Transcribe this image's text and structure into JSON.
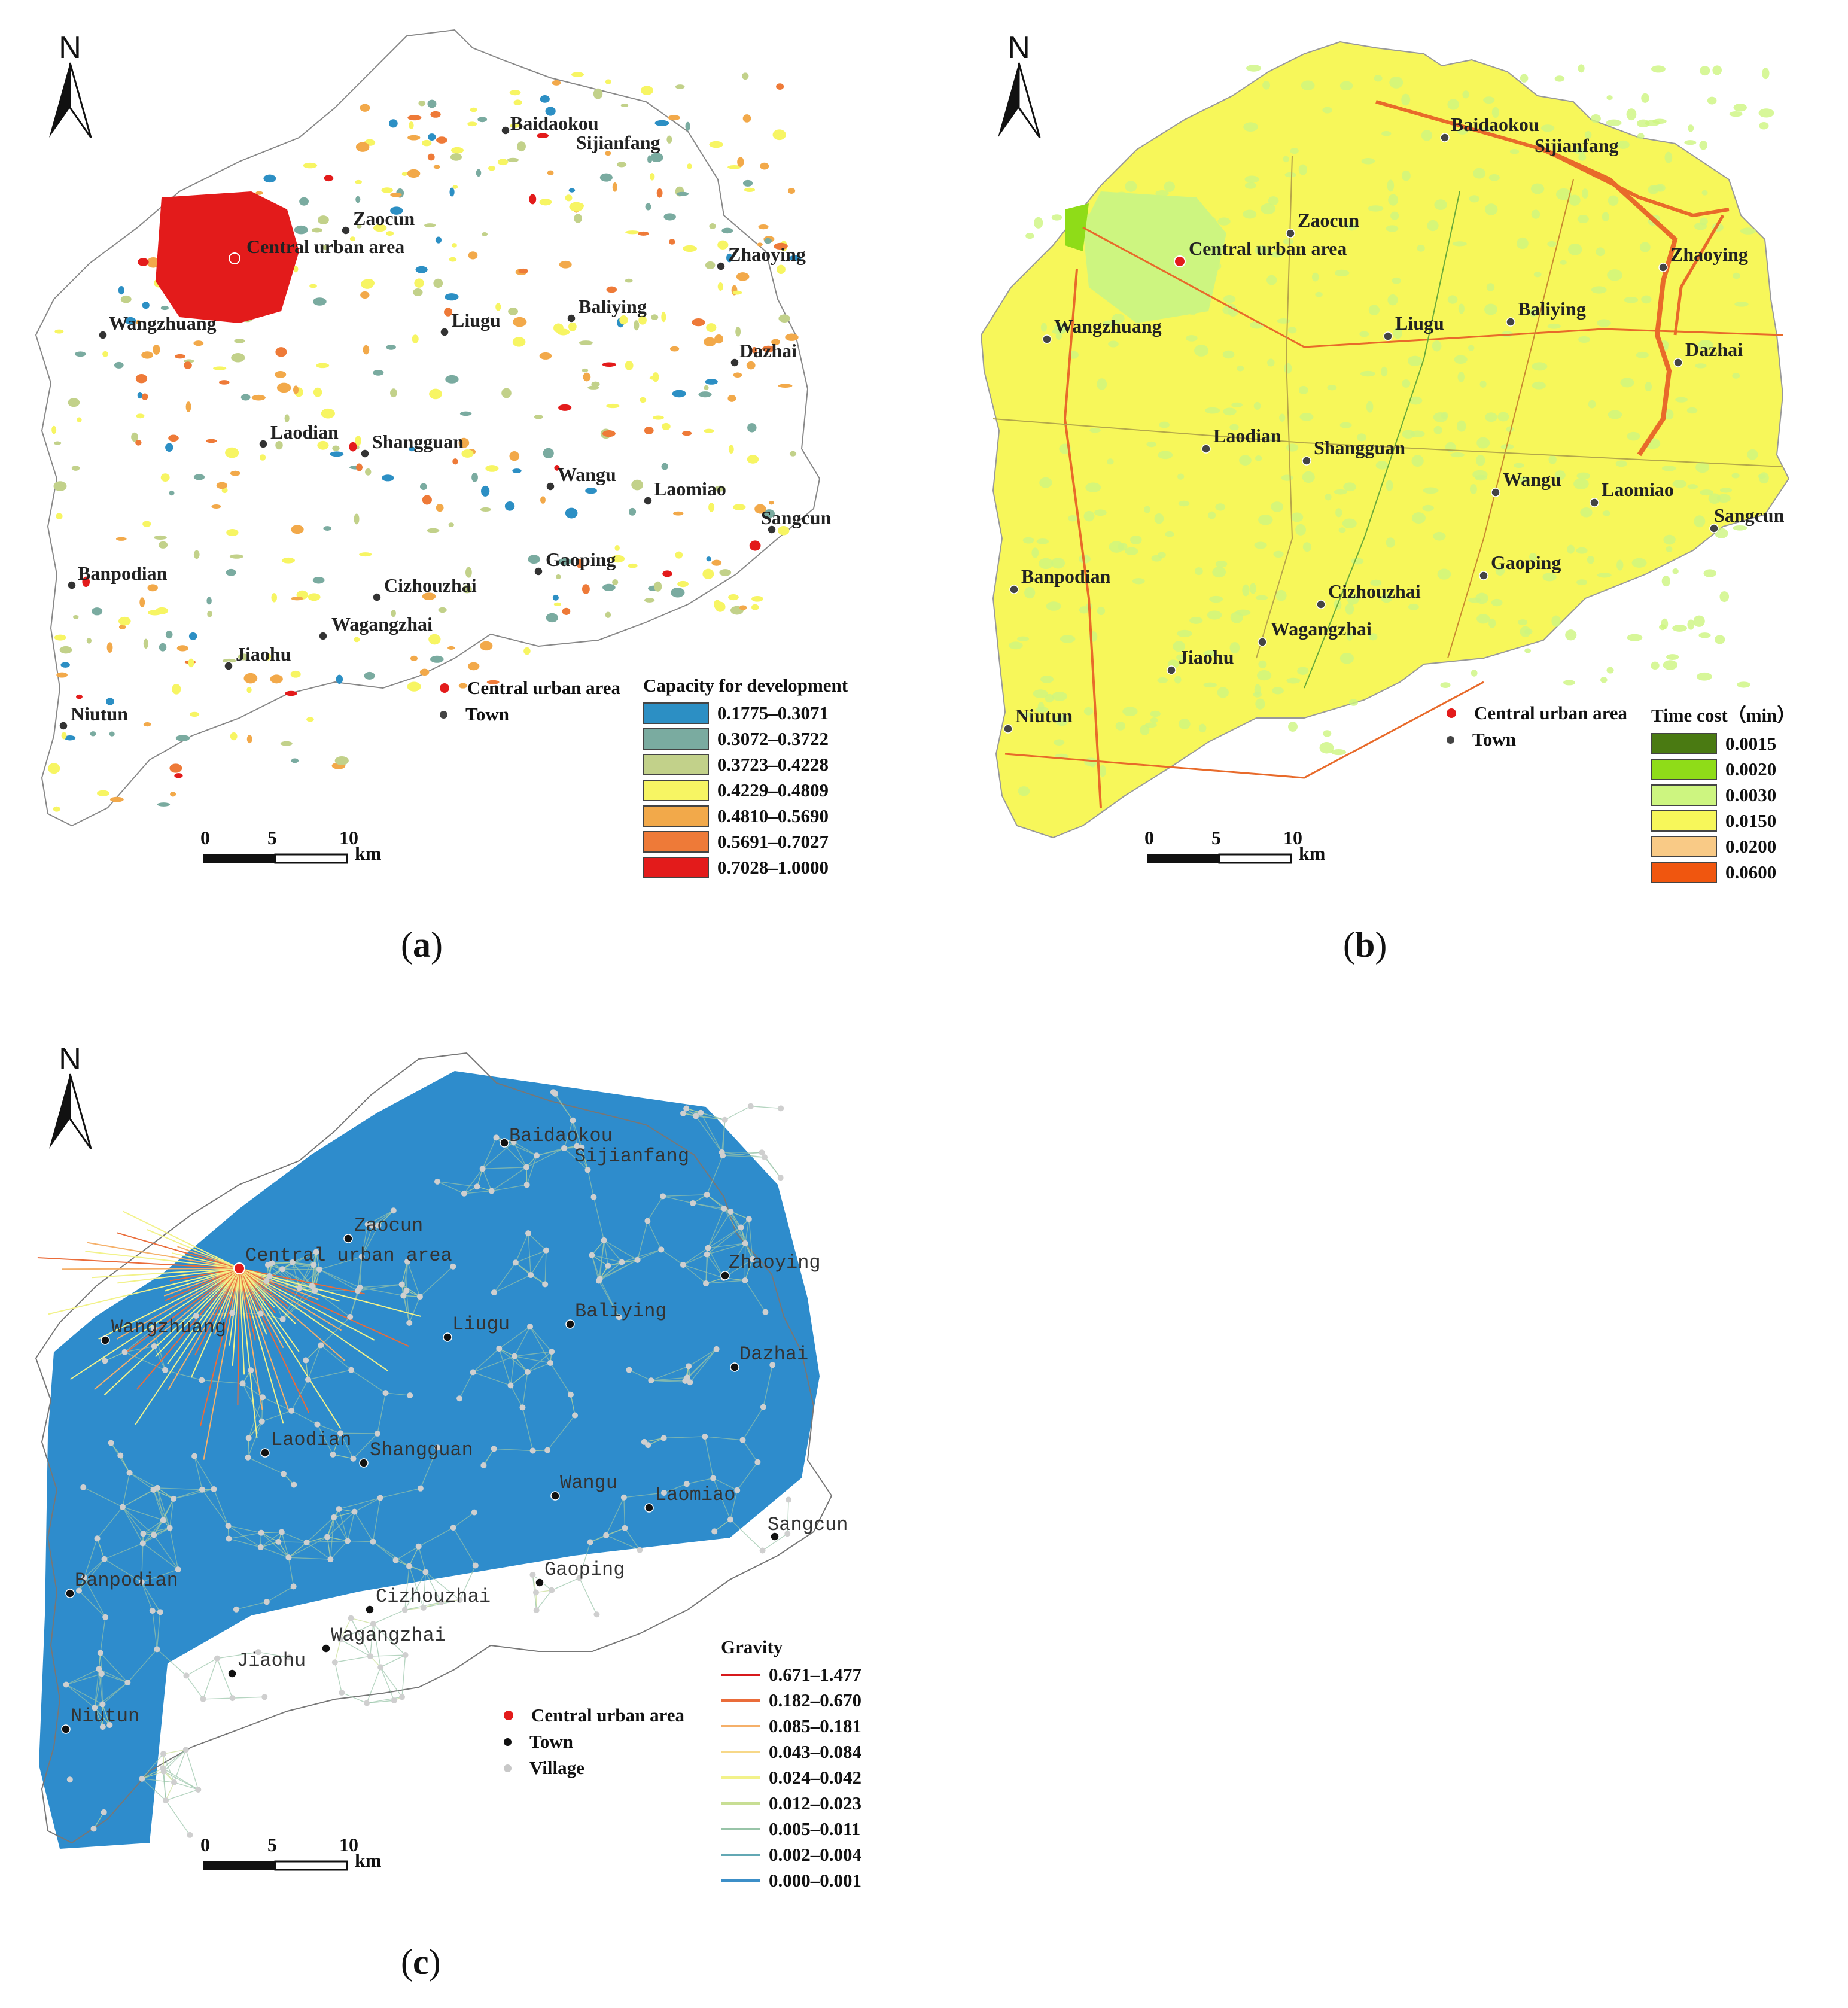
{
  "towns": [
    {
      "name": "Baidaokou"
    },
    {
      "name": "Sijianfang"
    },
    {
      "name": "Zaocun"
    },
    {
      "name": "Central urban area"
    },
    {
      "name": "Zhaoying"
    },
    {
      "name": "Wangzhuang"
    },
    {
      "name": "Liugu"
    },
    {
      "name": "Baliying"
    },
    {
      "name": "Dazhai"
    },
    {
      "name": "Laodian"
    },
    {
      "name": "Shangguan"
    },
    {
      "name": "Wangu"
    },
    {
      "name": "Laomiao"
    },
    {
      "name": "Sangcun"
    },
    {
      "name": "Gaoping"
    },
    {
      "name": "Banpodian"
    },
    {
      "name": "Cizhouzhai"
    },
    {
      "name": "Wagangzhai"
    },
    {
      "name": "Jiaohu"
    },
    {
      "name": "Niutun"
    }
  ],
  "north_label": "N",
  "scale_bar": {
    "ticks": [
      "0",
      "5",
      "10"
    ],
    "unit": "km"
  },
  "symbols": {
    "central": "Central urban area",
    "town": "Town",
    "village": "Village"
  },
  "panel_a": {
    "caption": "a",
    "legend_title": "Capacity for development",
    "classes": [
      {
        "label": "0.1775–0.3071",
        "color": "#2c8fc4"
      },
      {
        "label": "0.3072–0.3722",
        "color": "#7aaba0"
      },
      {
        "label": "0.3723–0.4228",
        "color": "#c2d18a"
      },
      {
        "label": "0.4229–0.4809",
        "color": "#f7f563"
      },
      {
        "label": "0.4810–0.5690",
        "color": "#f2a94a"
      },
      {
        "label": "0.5691–0.7027",
        "color": "#ee7a38"
      },
      {
        "label": "0.7028–1.0000",
        "color": "#e31b1b"
      }
    ]
  },
  "panel_b": {
    "caption": "b",
    "legend_title": "Time cost（min）",
    "classes": [
      {
        "label": "0.0015",
        "color": "#4a7a12"
      },
      {
        "label": "0.0020",
        "color": "#8fdc18"
      },
      {
        "label": "0.0030",
        "color": "#cdf580"
      },
      {
        "label": "0.0150",
        "color": "#f7f75a"
      },
      {
        "label": "0.0200",
        "color": "#f9ca86"
      },
      {
        "label": "0.0600",
        "color": "#f0560f"
      }
    ]
  },
  "panel_c": {
    "caption": "c",
    "legend_title": "Gravity",
    "classes": [
      {
        "label": "0.671–1.477",
        "color": "#d7191c"
      },
      {
        "label": "0.182–0.670",
        "color": "#ea6c3a"
      },
      {
        "label": "0.085–0.181",
        "color": "#f5b06a"
      },
      {
        "label": "0.043–0.084",
        "color": "#f7d888"
      },
      {
        "label": "0.024–0.042",
        "color": "#f2f28a"
      },
      {
        "label": "0.012–0.023",
        "color": "#c8de94"
      },
      {
        "label": "0.005–0.011",
        "color": "#98c4a8"
      },
      {
        "label": "0.002–0.004",
        "color": "#63a8b4"
      },
      {
        "label": "0.000–0.001",
        "color": "#3c8fc8"
      }
    ]
  }
}
